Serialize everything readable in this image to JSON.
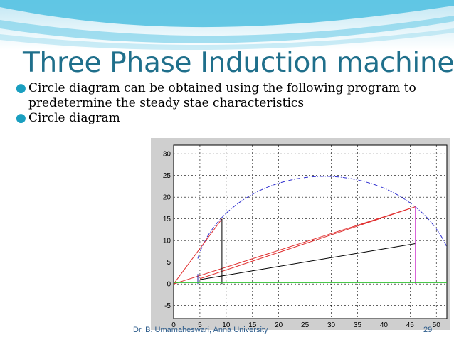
{
  "slide": {
    "title": "Three Phase Induction machine",
    "bullets": [
      "Circle diagram can be obtained using the following program to predetermine the steady stae  characteristics",
      "Circle diagram"
    ],
    "footer": {
      "author": "Dr. B. Umamaheswari, Anna University",
      "page": "29"
    },
    "colors": {
      "title": "#1f6f8b",
      "banner_blue": "#3fb3d6",
      "bullet": "#1a9fc0"
    }
  },
  "chart_data": {
    "type": "line",
    "grid": true,
    "xlim": [
      0,
      52
    ],
    "ylim": [
      -8,
      32
    ],
    "xticks": [
      "0",
      "5",
      "10",
      "15",
      "20",
      "25",
      "30",
      "35",
      "40",
      "45",
      "50"
    ],
    "yticks": [
      "-5",
      "0",
      "5",
      "10",
      "15",
      "20",
      "25",
      "30"
    ],
    "series": [
      {
        "color": "#3030d0",
        "style": "dashdot",
        "kind": "circle",
        "center": [
          28.7,
          0
        ],
        "radius": 24.8,
        "from_x": 4.6,
        "to_x": 53
      },
      {
        "color": "#e03030",
        "style": "solid",
        "points": [
          [
            0,
            0
          ],
          [
            9.2,
            15
          ],
          [
            0,
            0
          ],
          [
            46,
            17.8
          ],
          [
            5,
            1.2
          ],
          [
            46,
            17.8
          ]
        ]
      },
      {
        "color": "#000000",
        "style": "solid",
        "points": [
          [
            5,
            1.0
          ],
          [
            46,
            9.3
          ]
        ]
      },
      {
        "color": "#000000",
        "style": "solid",
        "points": [
          [
            9.2,
            0
          ],
          [
            9.2,
            15
          ]
        ]
      },
      {
        "color": "#2020a0",
        "style": "solid",
        "points": [
          [
            4.6,
            0
          ],
          [
            4.6,
            2.3
          ]
        ]
      },
      {
        "color": "#d040d0",
        "style": "solid",
        "points": [
          [
            46,
            0
          ],
          [
            46,
            17.8
          ]
        ]
      },
      {
        "color": "#30c030",
        "style": "solid",
        "points": [
          [
            0,
            0.3
          ],
          [
            52,
            0.3
          ]
        ]
      }
    ]
  }
}
